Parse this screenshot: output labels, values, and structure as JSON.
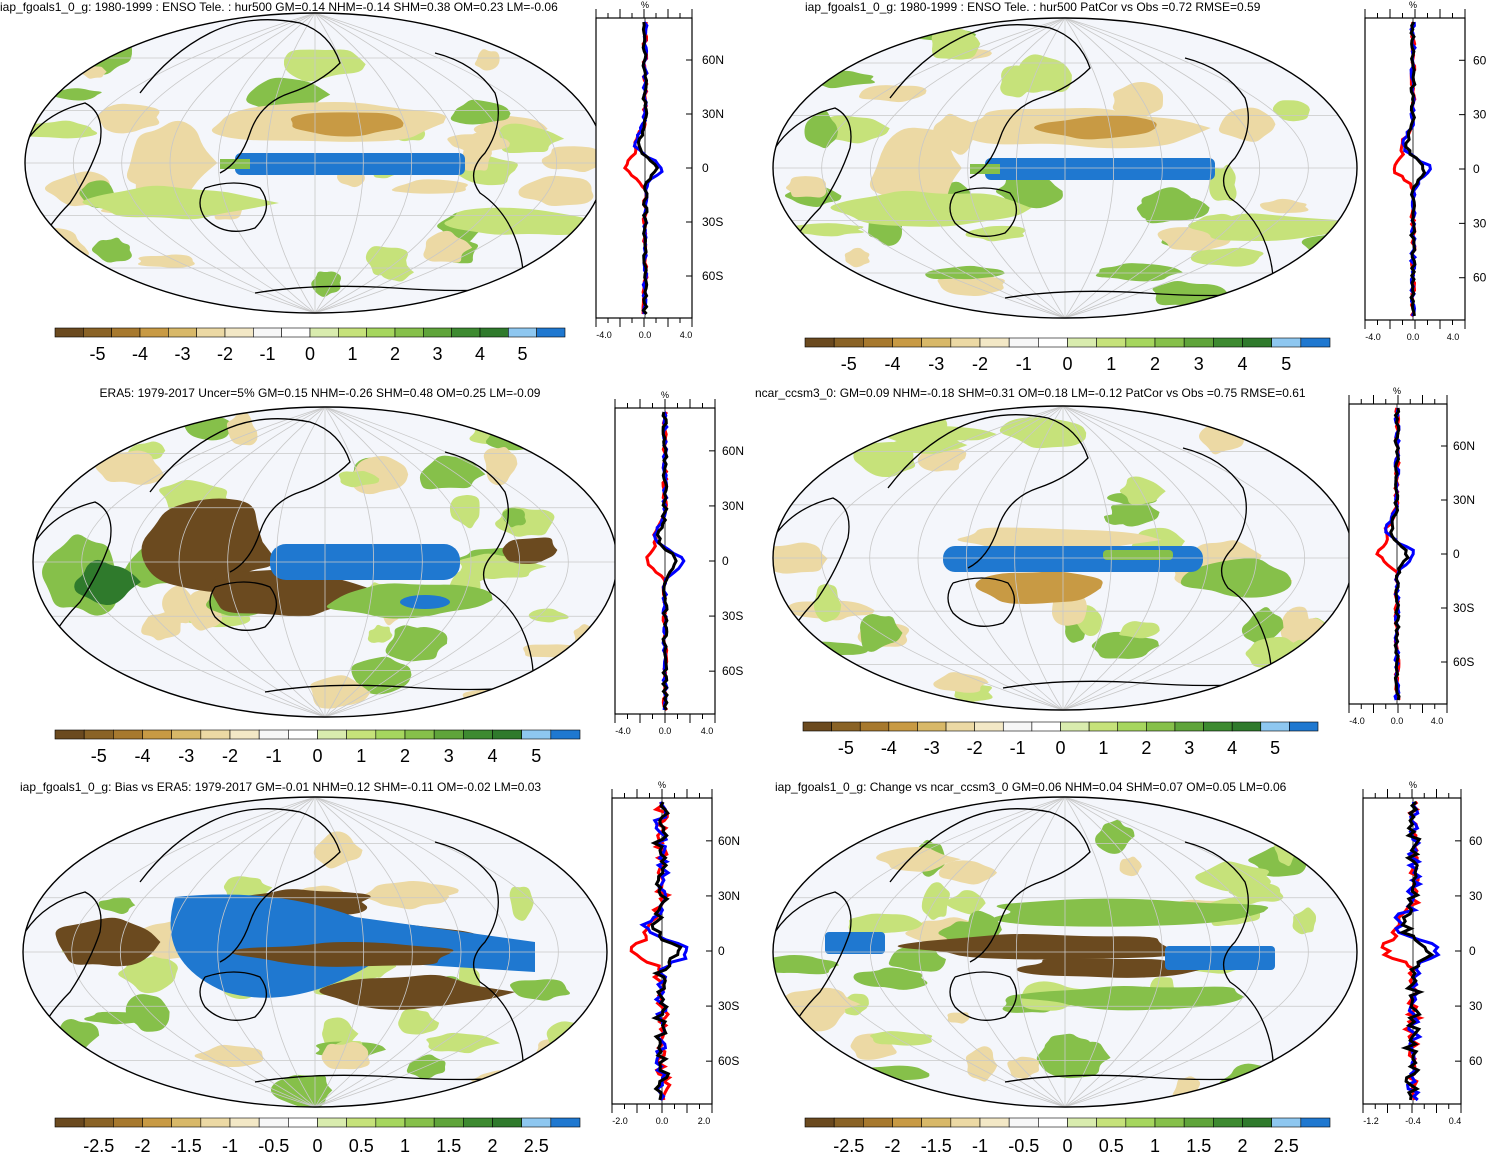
{
  "colors": {
    "ocean": "#f4f6fb",
    "blue_dark": "#1f78d0",
    "blue_light": "#8ec7f0",
    "brown_dark": "#6b4a1f",
    "brown_mid": "#c89a44",
    "tan": "#ecd9a4",
    "green_light": "#c6e27a",
    "green_mid": "#86c04a",
    "green_dark": "#2f7a2c",
    "profile_red": "#ff0000",
    "profile_blue": "#0000ff",
    "profile_black": "#000000",
    "colorbar": [
      "#6b4a1f",
      "#8a6326",
      "#a7792e",
      "#c89a44",
      "#d8b868",
      "#ecd9a4",
      "#f3e8c6",
      "#f7f7f7",
      "#ffffff",
      "#d9ecae",
      "#c6e27a",
      "#a6d65e",
      "#86c04a",
      "#5fa43a",
      "#3d8a30",
      "#2f7a2c",
      "#8ec7f0",
      "#1f78d0"
    ]
  },
  "panels": [
    {
      "id": "top-left",
      "title": "iap_fgoals1_0_g: 1980-1999 : ENSO Tele. : hur500 GM=0.14 NHM=-0.14 SHM=0.38 OM=0.23 LM=-0.06",
      "lat_labels": [
        "60N",
        "30N",
        "0",
        "30S",
        "60S"
      ],
      "x_ticks": [
        "-4.0",
        "0.0",
        "4.0"
      ],
      "units": "%",
      "colorbar_labels": [
        "-5",
        "-4",
        "-3",
        "-2",
        "-1",
        "0",
        "1",
        "2",
        "3",
        "4",
        "5"
      ]
    },
    {
      "id": "top-right",
      "title": "iap_fgoals1_0_g: 1980-1999 : ENSO Tele. : hur500 PatCor vs Obs =0.72 RMSE=0.59",
      "lat_labels": [
        "60",
        "30",
        "0",
        "30",
        "60"
      ],
      "x_ticks": [
        "-4.0",
        "0.0",
        "4.0"
      ],
      "units": "%",
      "colorbar_labels": [
        "-5",
        "-4",
        "-3",
        "-2",
        "-1",
        "0",
        "1",
        "2",
        "3",
        "4",
        "5"
      ]
    },
    {
      "id": "mid-left",
      "title": "ERA5: 1979-2017 Uncer=5% GM=0.15 NHM=-0.26 SHM=0.48 OM=0.25 LM=-0.09",
      "lat_labels": [
        "60N",
        "30N",
        "0",
        "30S",
        "60S"
      ],
      "x_ticks": [
        "-4.0",
        "0.0",
        "4.0"
      ],
      "units": "%",
      "colorbar_labels": [
        "-5",
        "-4",
        "-3",
        "-2",
        "-1",
        "0",
        "1",
        "2",
        "3",
        "4",
        "5"
      ]
    },
    {
      "id": "mid-right",
      "title": "ncar_ccsm3_0: GM=0.09 NHM=-0.18 SHM=0.31 OM=0.18 LM=-0.12 PatCor vs Obs =0.75 RMSE=0.61",
      "lat_labels": [
        "60N",
        "30N",
        "0",
        "30S",
        "60S"
      ],
      "x_ticks": [
        "-4.0",
        "0.0",
        "4.0"
      ],
      "units": "%",
      "colorbar_labels": [
        "-5",
        "-4",
        "-3",
        "-2",
        "-1",
        "0",
        "1",
        "2",
        "3",
        "4",
        "5"
      ]
    },
    {
      "id": "bottom-left",
      "title": "iap_fgoals1_0_g: Bias vs ERA5: 1979-2017 GM=-0.01 NHM=0.12 SHM=-0.11 OM=-0.02 LM=0.03",
      "lat_labels": [
        "60N",
        "30N",
        "0",
        "30S",
        "60S"
      ],
      "x_ticks": [
        "-2.0",
        "0.0",
        "2.0"
      ],
      "units": "%",
      "colorbar_labels": [
        "-2.5",
        "-2",
        "-1.5",
        "-1",
        "-0.5",
        "0",
        "0.5",
        "1",
        "1.5",
        "2",
        "2.5"
      ]
    },
    {
      "id": "bottom-right",
      "title": "iap_fgoals1_0_g: Change vs ncar_ccsm3_0 GM=0.06 NHM=0.04 SHM=0.07 OM=0.05 LM=0.06",
      "lat_labels": [
        "60",
        "30",
        "0",
        "30",
        "60"
      ],
      "x_ticks": [
        "-1.2",
        "-0.4",
        "0.4"
      ],
      "units": "%",
      "colorbar_labels": [
        "-2.5",
        "-2",
        "-1.5",
        "-1",
        "-0.5",
        "0",
        "0.5",
        "1",
        "1.5",
        "2",
        "2.5"
      ]
    }
  ]
}
